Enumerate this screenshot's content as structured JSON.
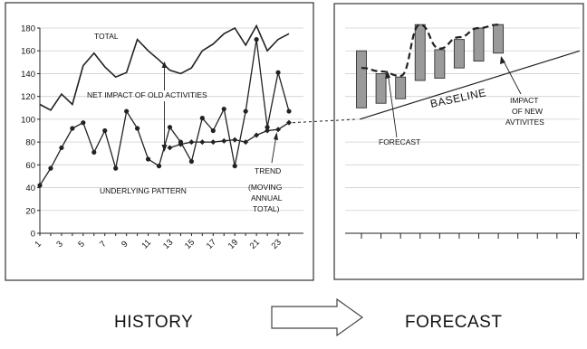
{
  "chart_data": [
    {
      "type": "line",
      "title": "",
      "xlabel": "",
      "ylabel": "",
      "x": [
        1,
        2,
        3,
        4,
        5,
        6,
        7,
        8,
        9,
        10,
        11,
        12,
        13,
        14,
        15,
        16,
        17,
        18,
        19,
        20,
        21,
        22,
        23,
        24
      ],
      "x_tick_labels": [
        "1",
        "3",
        "5",
        "7",
        "9",
        "11",
        "13",
        "15",
        "17",
        "19",
        "21",
        "23"
      ],
      "ylim": [
        0,
        180
      ],
      "y_ticks": [
        0,
        20,
        40,
        60,
        80,
        100,
        120,
        140,
        160,
        180
      ],
      "grid": true,
      "series": [
        {
          "name": "TOTAL",
          "values": [
            113,
            108,
            122,
            113,
            147,
            158,
            146,
            137,
            141,
            170,
            160,
            152,
            143,
            140,
            145,
            160,
            166,
            175,
            180,
            165,
            182,
            160,
            170,
            175
          ]
        },
        {
          "name": "UNDERLYING PATTERN",
          "values": [
            42,
            57,
            75,
            92,
            97,
            71,
            90,
            57,
            107,
            92,
            65,
            59,
            93,
            80,
            63,
            101,
            90,
            109,
            59,
            107,
            170,
            93,
            141,
            107
          ]
        },
        {
          "name": "TREND (MOVING ANNUAL TOTAL)",
          "values": [
            null,
            null,
            null,
            null,
            null,
            null,
            null,
            null,
            null,
            null,
            null,
            null,
            75,
            78,
            80,
            80,
            80,
            81,
            82,
            80,
            86,
            90,
            91,
            97
          ]
        }
      ],
      "annotations": {
        "total": "TOTAL",
        "net_impact": "NET IMPACT OF OLD ACTIVITIES",
        "underlying": "UNDERLYING PATTERN",
        "trend_1": "TREND",
        "trend_2": "(MOVING",
        "trend_3": "ANNUAL",
        "trend_4": "TOTAL)"
      }
    },
    {
      "type": "bar",
      "title": "",
      "xlabel": "",
      "ylabel": "",
      "ylim": [
        0,
        180
      ],
      "periods": 12,
      "baseline": {
        "start": 100,
        "end": 160
      },
      "bars": [
        {
          "low": 110,
          "high": 160
        },
        {
          "low": 114,
          "high": 140
        },
        {
          "low": 118,
          "high": 137
        },
        {
          "low": 134,
          "high": 183
        },
        {
          "low": 136,
          "high": 161
        },
        {
          "low": 145,
          "high": 170
        },
        {
          "low": 151,
          "high": 180
        },
        {
          "low": 158,
          "high": 183
        }
      ],
      "forecast_line": [
        145,
        142,
        138,
        183,
        162,
        172,
        180,
        183
      ],
      "annotations": {
        "baseline": "BASELINE",
        "forecast": "FORECAST",
        "impact_1": "IMPACT",
        "impact_2": "OF NEW",
        "impact_3": "AVTIVITES"
      }
    }
  ],
  "labels": {
    "history": "HISTORY",
    "forecast": "FORECAST"
  },
  "colors": {
    "line": "#222222",
    "bar_fill": "#9a9a9a",
    "grid": "#cfcfcf"
  }
}
